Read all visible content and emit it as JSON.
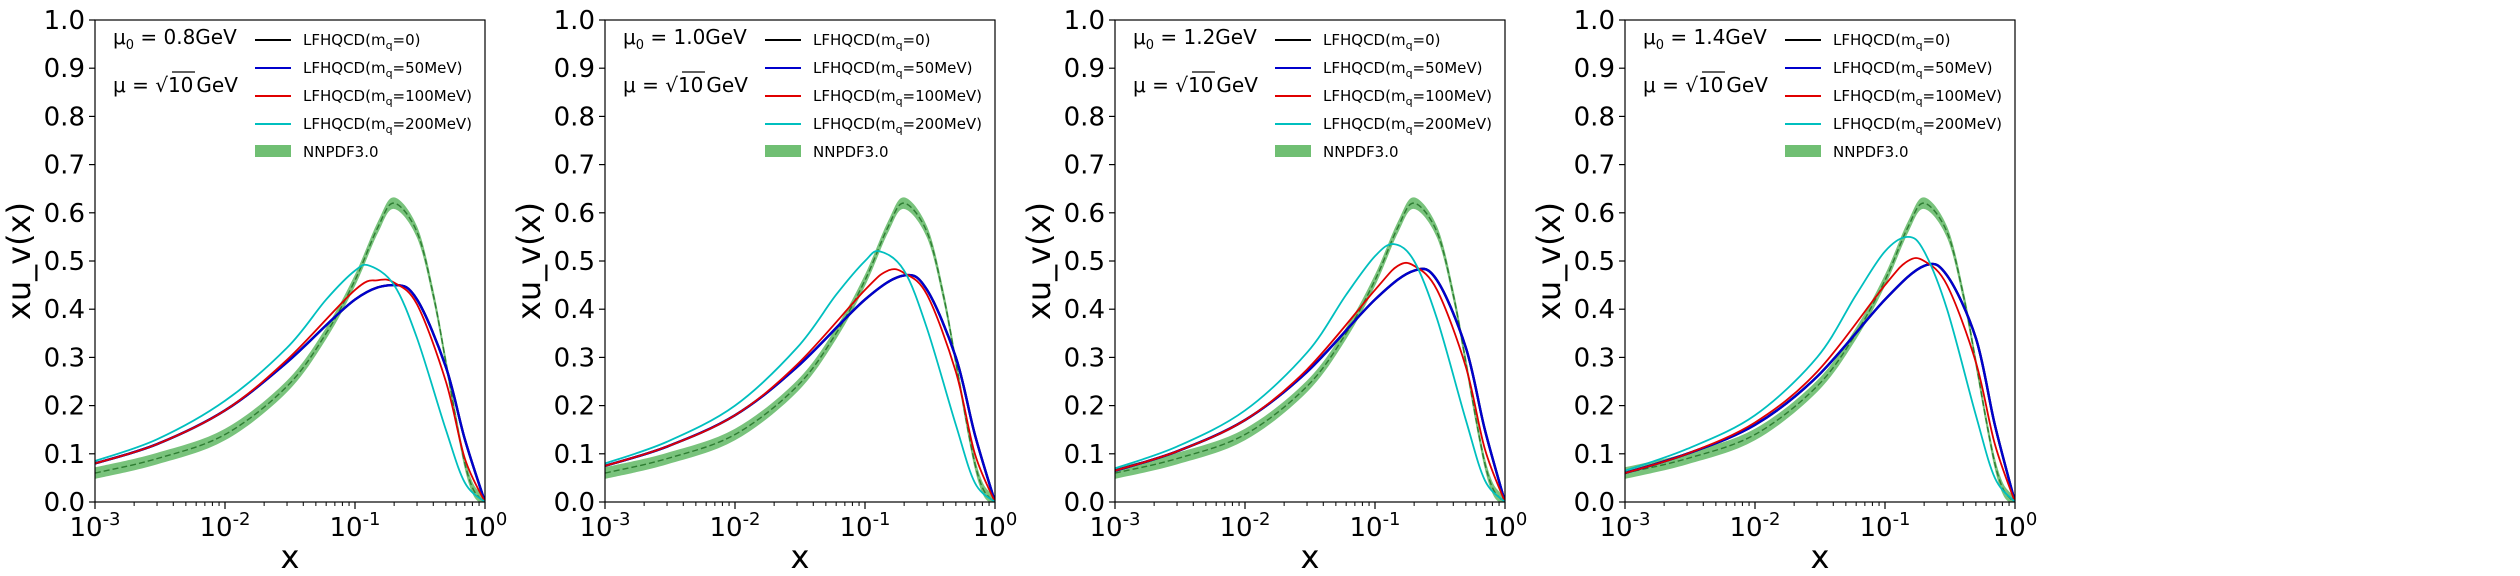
{
  "colors": {
    "mq0": "#000000",
    "mq50": "#0000cc",
    "mq100": "#e00000",
    "mq200": "#00bfbf",
    "nnpdf": "#4caf50",
    "nnpdf_center": "#2e7d32"
  },
  "chart_data": [
    {
      "type": "line",
      "xscale": "log",
      "xlim": [
        0.001,
        1
      ],
      "ylim": [
        0,
        1
      ],
      "xlabel": "x",
      "ylabel": "xu_v(x)",
      "xticks": [
        {
          "base": "10",
          "exp": "-3"
        },
        {
          "base": "10",
          "exp": "-2"
        },
        {
          "base": "10",
          "exp": "-1"
        },
        {
          "base": "10",
          "exp": "0"
        }
      ],
      "yticks": [
        "0.0",
        "0.1",
        "0.2",
        "0.3",
        "0.4",
        "0.5",
        "0.6",
        "0.7",
        "0.8",
        "0.9",
        "1.0"
      ],
      "annotation": {
        "mu0_label": "μ",
        "mu0_sub": "0",
        "mu0_value": " = 0.8GeV",
        "mu_label": "μ = ",
        "mu_value": "10",
        "mu_unit": "GeV"
      },
      "legend_position": "upper-center",
      "series": [
        {
          "name": "LFHQCD(m",
          "name_sub": "q",
          "name_tail": "=0)",
          "key": "mq0",
          "kind": "line",
          "x": [
            0.001,
            0.003,
            0.01,
            0.03,
            0.1,
            0.2,
            0.3,
            0.5,
            0.7,
            1.0
          ],
          "y": [
            0.08,
            0.12,
            0.19,
            0.29,
            0.42,
            0.45,
            0.42,
            0.28,
            0.13,
            0.0
          ]
        },
        {
          "name": "LFHQCD(m",
          "name_sub": "q",
          "name_tail": "=50MeV)",
          "key": "mq50",
          "kind": "line",
          "x": [
            0.001,
            0.003,
            0.01,
            0.03,
            0.1,
            0.2,
            0.3,
            0.5,
            0.7,
            1.0
          ],
          "y": [
            0.08,
            0.12,
            0.19,
            0.29,
            0.42,
            0.45,
            0.42,
            0.28,
            0.13,
            0.0
          ]
        },
        {
          "name": "LFHQCD(m",
          "name_sub": "q",
          "name_tail": "=100MeV)",
          "key": "mq100",
          "kind": "line",
          "x": [
            0.001,
            0.003,
            0.01,
            0.03,
            0.1,
            0.15,
            0.2,
            0.3,
            0.5,
            0.7,
            1.0
          ],
          "y": [
            0.08,
            0.12,
            0.19,
            0.295,
            0.44,
            0.46,
            0.455,
            0.41,
            0.25,
            0.09,
            0.0
          ]
        },
        {
          "name": "LFHQCD(m",
          "name_sub": "q",
          "name_tail": "=200MeV)",
          "key": "mq200",
          "kind": "line",
          "x": [
            0.001,
            0.003,
            0.01,
            0.03,
            0.06,
            0.1,
            0.13,
            0.2,
            0.3,
            0.5,
            0.7,
            1.0
          ],
          "y": [
            0.085,
            0.13,
            0.21,
            0.32,
            0.42,
            0.48,
            0.49,
            0.45,
            0.34,
            0.15,
            0.04,
            0.0
          ]
        },
        {
          "name": "NNPDF3.0",
          "name_sub": "",
          "name_tail": "",
          "key": "nnpdf",
          "kind": "band",
          "x": [
            0.001,
            0.003,
            0.01,
            0.03,
            0.06,
            0.1,
            0.15,
            0.2,
            0.3,
            0.4,
            0.5,
            0.6,
            0.7,
            0.8,
            0.9,
            1.0
          ],
          "y": [
            0.06,
            0.09,
            0.14,
            0.24,
            0.35,
            0.46,
            0.57,
            0.62,
            0.56,
            0.43,
            0.29,
            0.17,
            0.08,
            0.03,
            0.01,
            0.0
          ],
          "width": 0.012
        }
      ]
    },
    {
      "type": "line",
      "xscale": "log",
      "xlim": [
        0.001,
        1
      ],
      "ylim": [
        0,
        1
      ],
      "xlabel": "x",
      "ylabel": "xu_v(x)",
      "xticks": [
        {
          "base": "10",
          "exp": "-3"
        },
        {
          "base": "10",
          "exp": "-2"
        },
        {
          "base": "10",
          "exp": "-1"
        },
        {
          "base": "10",
          "exp": "0"
        }
      ],
      "yticks": [
        "0.0",
        "0.1",
        "0.2",
        "0.3",
        "0.4",
        "0.5",
        "0.6",
        "0.7",
        "0.8",
        "0.9",
        "1.0"
      ],
      "annotation": {
        "mu0_label": "μ",
        "mu0_sub": "0",
        "mu0_value": " = 1.0GeV",
        "mu_label": "μ = ",
        "mu_value": "10",
        "mu_unit": "GeV"
      },
      "legend_position": "upper-center",
      "series": [
        {
          "name": "LFHQCD(m",
          "name_sub": "q",
          "name_tail": "=0)",
          "key": "mq0",
          "kind": "line",
          "x": [
            0.001,
            0.003,
            0.01,
            0.03,
            0.1,
            0.2,
            0.3,
            0.5,
            0.7,
            1.0
          ],
          "y": [
            0.075,
            0.115,
            0.18,
            0.28,
            0.42,
            0.47,
            0.44,
            0.3,
            0.14,
            0.0
          ]
        },
        {
          "name": "LFHQCD(m",
          "name_sub": "q",
          "name_tail": "=50MeV)",
          "key": "mq50",
          "kind": "line",
          "x": [
            0.001,
            0.003,
            0.01,
            0.03,
            0.1,
            0.2,
            0.3,
            0.5,
            0.7,
            1.0
          ],
          "y": [
            0.075,
            0.115,
            0.18,
            0.28,
            0.42,
            0.47,
            0.44,
            0.3,
            0.14,
            0.0
          ]
        },
        {
          "name": "LFHQCD(m",
          "name_sub": "q",
          "name_tail": "=100MeV)",
          "key": "mq100",
          "kind": "line",
          "x": [
            0.001,
            0.003,
            0.01,
            0.03,
            0.1,
            0.15,
            0.2,
            0.3,
            0.5,
            0.7,
            1.0
          ],
          "y": [
            0.075,
            0.115,
            0.18,
            0.285,
            0.44,
            0.48,
            0.475,
            0.43,
            0.27,
            0.1,
            0.0
          ]
        },
        {
          "name": "LFHQCD(m",
          "name_sub": "q",
          "name_tail": "=200MeV)",
          "key": "mq200",
          "kind": "line",
          "x": [
            0.001,
            0.003,
            0.01,
            0.03,
            0.06,
            0.1,
            0.13,
            0.2,
            0.3,
            0.5,
            0.7,
            1.0
          ],
          "y": [
            0.08,
            0.125,
            0.2,
            0.32,
            0.43,
            0.5,
            0.52,
            0.48,
            0.36,
            0.16,
            0.04,
            0.0
          ]
        },
        {
          "name": "NNPDF3.0",
          "name_sub": "",
          "name_tail": "",
          "key": "nnpdf",
          "kind": "band",
          "x": [
            0.001,
            0.003,
            0.01,
            0.03,
            0.06,
            0.1,
            0.15,
            0.2,
            0.3,
            0.4,
            0.5,
            0.6,
            0.7,
            0.8,
            0.9,
            1.0
          ],
          "y": [
            0.06,
            0.09,
            0.14,
            0.24,
            0.35,
            0.46,
            0.57,
            0.62,
            0.56,
            0.43,
            0.29,
            0.17,
            0.08,
            0.03,
            0.01,
            0.0
          ],
          "width": 0.012
        }
      ]
    },
    {
      "type": "line",
      "xscale": "log",
      "xlim": [
        0.001,
        1
      ],
      "ylim": [
        0,
        1
      ],
      "xlabel": "x",
      "ylabel": "xu_v(x)",
      "xticks": [
        {
          "base": "10",
          "exp": "-3"
        },
        {
          "base": "10",
          "exp": "-2"
        },
        {
          "base": "10",
          "exp": "-1"
        },
        {
          "base": "10",
          "exp": "0"
        }
      ],
      "yticks": [
        "0.0",
        "0.1",
        "0.2",
        "0.3",
        "0.4",
        "0.5",
        "0.6",
        "0.7",
        "0.8",
        "0.9",
        "1.0"
      ],
      "annotation": {
        "mu0_label": "μ",
        "mu0_sub": "0",
        "mu0_value": " = 1.2GeV",
        "mu_label": "μ = ",
        "mu_value": "10",
        "mu_unit": "GeV"
      },
      "legend_position": "upper-center",
      "series": [
        {
          "name": "LFHQCD(m",
          "name_sub": "q",
          "name_tail": "=0)",
          "key": "mq0",
          "kind": "line",
          "x": [
            0.001,
            0.003,
            0.01,
            0.03,
            0.1,
            0.2,
            0.3,
            0.5,
            0.7,
            1.0
          ],
          "y": [
            0.065,
            0.105,
            0.17,
            0.27,
            0.42,
            0.48,
            0.46,
            0.32,
            0.15,
            0.0
          ]
        },
        {
          "name": "LFHQCD(m",
          "name_sub": "q",
          "name_tail": "=50MeV)",
          "key": "mq50",
          "kind": "line",
          "x": [
            0.001,
            0.003,
            0.01,
            0.03,
            0.1,
            0.2,
            0.3,
            0.5,
            0.7,
            1.0
          ],
          "y": [
            0.065,
            0.105,
            0.17,
            0.27,
            0.42,
            0.48,
            0.46,
            0.32,
            0.15,
            0.0
          ]
        },
        {
          "name": "LFHQCD(m",
          "name_sub": "q",
          "name_tail": "=100MeV)",
          "key": "mq100",
          "kind": "line",
          "x": [
            0.001,
            0.003,
            0.01,
            0.03,
            0.1,
            0.15,
            0.2,
            0.3,
            0.5,
            0.7,
            1.0
          ],
          "y": [
            0.065,
            0.105,
            0.17,
            0.275,
            0.44,
            0.49,
            0.49,
            0.44,
            0.28,
            0.11,
            0.0
          ]
        },
        {
          "name": "LFHQCD(m",
          "name_sub": "q",
          "name_tail": "=200MeV)",
          "key": "mq200",
          "kind": "line",
          "x": [
            0.001,
            0.003,
            0.01,
            0.03,
            0.06,
            0.1,
            0.14,
            0.2,
            0.3,
            0.5,
            0.7,
            1.0
          ],
          "y": [
            0.07,
            0.115,
            0.19,
            0.31,
            0.43,
            0.51,
            0.535,
            0.5,
            0.38,
            0.17,
            0.045,
            0.0
          ]
        },
        {
          "name": "NNPDF3.0",
          "name_sub": "",
          "name_tail": "",
          "key": "nnpdf",
          "kind": "band",
          "x": [
            0.001,
            0.003,
            0.01,
            0.03,
            0.06,
            0.1,
            0.15,
            0.2,
            0.3,
            0.4,
            0.5,
            0.6,
            0.7,
            0.8,
            0.9,
            1.0
          ],
          "y": [
            0.06,
            0.09,
            0.14,
            0.24,
            0.35,
            0.46,
            0.57,
            0.62,
            0.56,
            0.43,
            0.29,
            0.17,
            0.08,
            0.03,
            0.01,
            0.0
          ],
          "width": 0.012
        }
      ]
    },
    {
      "type": "line",
      "xscale": "log",
      "xlim": [
        0.001,
        1
      ],
      "ylim": [
        0,
        1
      ],
      "xlabel": "x",
      "ylabel": "xu_v(x)",
      "xticks": [
        {
          "base": "10",
          "exp": "-3"
        },
        {
          "base": "10",
          "exp": "-2"
        },
        {
          "base": "10",
          "exp": "-1"
        },
        {
          "base": "10",
          "exp": "0"
        }
      ],
      "yticks": [
        "0.0",
        "0.1",
        "0.2",
        "0.3",
        "0.4",
        "0.5",
        "0.6",
        "0.7",
        "0.8",
        "0.9",
        "1.0"
      ],
      "annotation": {
        "mu0_label": "μ",
        "mu0_sub": "0",
        "mu0_value": " = 1.4GeV",
        "mu_label": "μ = ",
        "mu_value": "10",
        "mu_unit": "GeV"
      },
      "legend_position": "upper-center",
      "series": [
        {
          "name": "LFHQCD(m",
          "name_sub": "q",
          "name_tail": "=0)",
          "key": "mq0",
          "kind": "line",
          "x": [
            0.001,
            0.003,
            0.01,
            0.03,
            0.1,
            0.2,
            0.3,
            0.5,
            0.7,
            1.0
          ],
          "y": [
            0.06,
            0.1,
            0.16,
            0.26,
            0.42,
            0.49,
            0.47,
            0.34,
            0.16,
            0.0
          ]
        },
        {
          "name": "LFHQCD(m",
          "name_sub": "q",
          "name_tail": "=50MeV)",
          "key": "mq50",
          "kind": "line",
          "x": [
            0.001,
            0.003,
            0.01,
            0.03,
            0.1,
            0.2,
            0.3,
            0.5,
            0.7,
            1.0
          ],
          "y": [
            0.06,
            0.1,
            0.16,
            0.26,
            0.42,
            0.49,
            0.47,
            0.34,
            0.16,
            0.0
          ]
        },
        {
          "name": "LFHQCD(m",
          "name_sub": "q",
          "name_tail": "=100MeV)",
          "key": "mq100",
          "kind": "line",
          "x": [
            0.001,
            0.003,
            0.01,
            0.03,
            0.1,
            0.15,
            0.2,
            0.3,
            0.5,
            0.7,
            1.0
          ],
          "y": [
            0.06,
            0.1,
            0.165,
            0.27,
            0.45,
            0.5,
            0.5,
            0.45,
            0.29,
            0.12,
            0.0
          ]
        },
        {
          "name": "LFHQCD(m",
          "name_sub": "q",
          "name_tail": "=200MeV)",
          "key": "mq200",
          "kind": "line",
          "x": [
            0.001,
            0.003,
            0.01,
            0.03,
            0.06,
            0.1,
            0.15,
            0.2,
            0.3,
            0.5,
            0.7,
            1.0
          ],
          "y": [
            0.065,
            0.11,
            0.18,
            0.3,
            0.43,
            0.52,
            0.55,
            0.52,
            0.4,
            0.18,
            0.05,
            0.0
          ]
        },
        {
          "name": "NNPDF3.0",
          "name_sub": "",
          "name_tail": "",
          "key": "nnpdf",
          "kind": "band",
          "x": [
            0.001,
            0.003,
            0.01,
            0.03,
            0.06,
            0.1,
            0.15,
            0.2,
            0.3,
            0.4,
            0.5,
            0.6,
            0.7,
            0.8,
            0.9,
            1.0
          ],
          "y": [
            0.06,
            0.09,
            0.14,
            0.24,
            0.35,
            0.46,
            0.57,
            0.62,
            0.56,
            0.43,
            0.29,
            0.17,
            0.08,
            0.03,
            0.01,
            0.0
          ],
          "width": 0.012
        }
      ]
    }
  ]
}
